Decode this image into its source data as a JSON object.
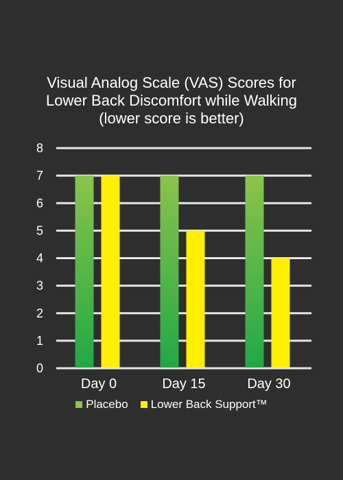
{
  "chart_data": {
    "type": "bar",
    "title_lines": [
      "Visual Analog Scale (VAS) Scores for",
      "Lower Back Discomfort while Walking",
      "(lower score is better)"
    ],
    "categories": [
      "Day 0",
      "Day 15",
      "Day 30"
    ],
    "series": [
      {
        "name": "Placebo",
        "values": [
          7,
          7,
          7
        ],
        "color_top": "#8bc34a",
        "color_bottom": "#21a846"
      },
      {
        "name": "Lower Back Support™",
        "values": [
          7,
          5,
          4
        ],
        "color": "#ffef00"
      }
    ],
    "ylim": [
      0,
      8
    ],
    "yticks": [
      "0",
      "1",
      "2",
      "3",
      "4",
      "5",
      "6",
      "7",
      "8"
    ],
    "grid": true,
    "legend_position": "bottom"
  },
  "colors": {
    "background": "#2e2e2e",
    "grid": "#e6e6e6",
    "text": "#ffffff"
  }
}
